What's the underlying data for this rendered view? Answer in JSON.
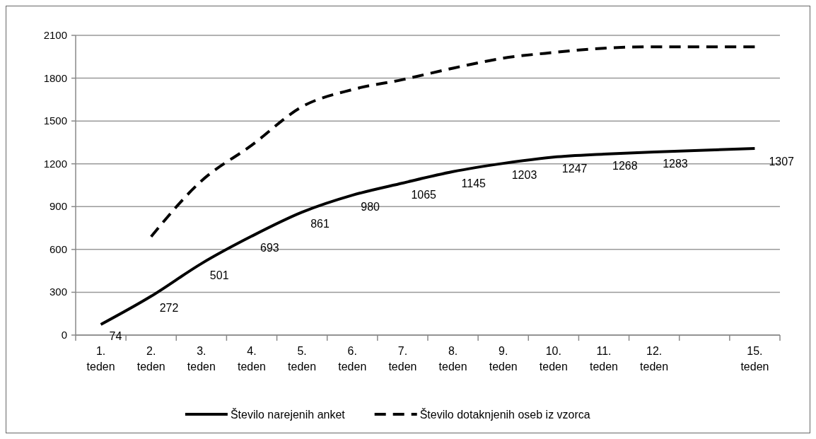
{
  "chart_data": {
    "type": "line",
    "categories": [
      "1.\nteden",
      "2.\nteden",
      "3.\nteden",
      "4.\nteden",
      "5.\nteden",
      "6.\nteden",
      "7.\nteden",
      "8.\nteden",
      "9.\nteden",
      "10.\nteden",
      "11.\nteden",
      "12.\nteden",
      null,
      "15.\nteden"
    ],
    "series": [
      {
        "name": "Število narejenih anket",
        "color": "#000000",
        "line_style": "solid",
        "values": [
          74,
          272,
          501,
          693,
          861,
          980,
          1065,
          1145,
          1203,
          1247,
          1268,
          1283,
          1295,
          1307
        ],
        "value_labels": [
          "74",
          "272",
          "501",
          "693",
          "861",
          "980",
          "1065",
          "1145",
          "1203",
          "1247",
          "1268",
          "1283",
          null,
          "1307"
        ]
      },
      {
        "name": "Število dotaknjenih oseb iz vzorca",
        "color": "#000000",
        "line_style": "dashed",
        "values": [
          null,
          690,
          1080,
          1330,
          1600,
          1720,
          1790,
          1870,
          1940,
          1980,
          2010,
          2020,
          2020,
          2020
        ]
      }
    ],
    "ylim": [
      0,
      2100
    ],
    "yticks": [
      0,
      300,
      600,
      900,
      1200,
      1500,
      1800,
      2100
    ],
    "grid": "y",
    "legend": "bottom",
    "marker": "none"
  }
}
